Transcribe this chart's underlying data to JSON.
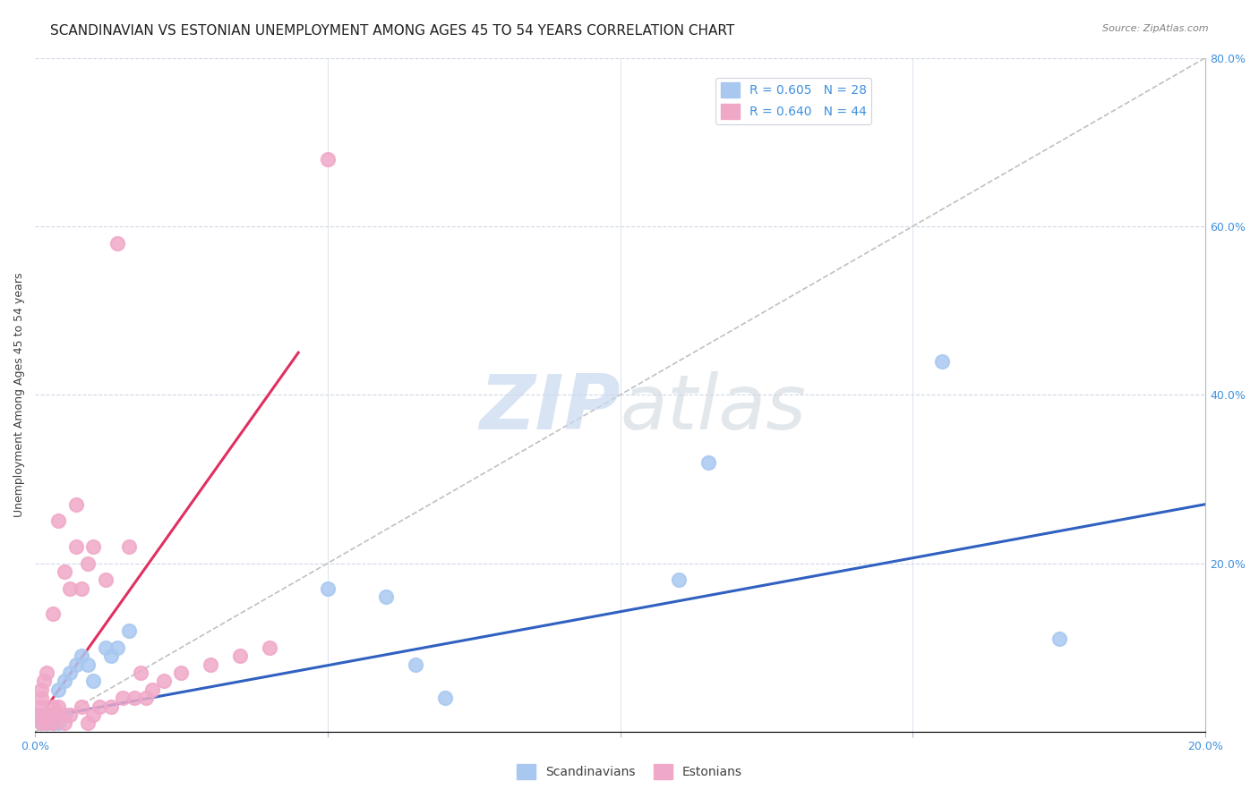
{
  "title": "SCANDINAVIAN VS ESTONIAN UNEMPLOYMENT AMONG AGES 45 TO 54 YEARS CORRELATION CHART",
  "source": "Source: ZipAtlas.com",
  "xlabel_ticks": [
    "0.0%",
    "20.0%"
  ],
  "ylabel_label": "Unemployment Among Ages 45 to 54 years",
  "right_yticks": [
    "80.0%",
    "60.0%",
    "40.0%",
    "20.0%"
  ],
  "legend_blue_text": "R = 0.605   N = 28",
  "legend_pink_text": "R = 0.640   N = 44",
  "legend_blue_label": "Scandinavians",
  "legend_pink_label": "Estonians",
  "blue_scatter_color": "#a8c8f0",
  "pink_scatter_color": "#f0a8c8",
  "blue_line_color": "#3060c0",
  "pink_line_color": "#e03060",
  "dashed_line_color": "#c0c0c0",
  "watermark_text": "ZIPatlas",
  "watermark_zip_color": "#c8d8f0",
  "watermark_atlas_color": "#d0d0d0",
  "title_fontsize": 11,
  "axis_label_fontsize": 9,
  "tick_fontsize": 9,
  "blue_scatter_x": [
    0.001,
    0.001,
    0.002,
    0.002,
    0.003,
    0.003,
    0.003,
    0.004,
    0.004,
    0.005,
    0.005,
    0.006,
    0.007,
    0.008,
    0.009,
    0.01,
    0.012,
    0.013,
    0.014,
    0.016,
    0.05,
    0.06,
    0.065,
    0.07,
    0.11,
    0.115,
    0.155,
    0.175
  ],
  "blue_scatter_y": [
    0.01,
    0.02,
    0.01,
    0.02,
    0.01,
    0.015,
    0.02,
    0.01,
    0.05,
    0.06,
    0.02,
    0.07,
    0.08,
    0.09,
    0.08,
    0.06,
    0.1,
    0.09,
    0.1,
    0.12,
    0.17,
    0.16,
    0.08,
    0.04,
    0.18,
    0.32,
    0.44,
    0.11
  ],
  "pink_scatter_x": [
    0.0005,
    0.001,
    0.001,
    0.001,
    0.001,
    0.0015,
    0.002,
    0.002,
    0.002,
    0.003,
    0.003,
    0.003,
    0.003,
    0.004,
    0.004,
    0.004,
    0.005,
    0.005,
    0.006,
    0.006,
    0.007,
    0.007,
    0.008,
    0.008,
    0.009,
    0.009,
    0.01,
    0.01,
    0.011,
    0.012,
    0.013,
    0.014,
    0.015,
    0.016,
    0.017,
    0.018,
    0.019,
    0.02,
    0.022,
    0.025,
    0.03,
    0.035,
    0.04,
    0.05
  ],
  "pink_scatter_y": [
    0.02,
    0.01,
    0.03,
    0.04,
    0.05,
    0.06,
    0.01,
    0.02,
    0.07,
    0.01,
    0.02,
    0.03,
    0.14,
    0.02,
    0.03,
    0.25,
    0.01,
    0.19,
    0.02,
    0.17,
    0.22,
    0.27,
    0.03,
    0.17,
    0.01,
    0.2,
    0.02,
    0.22,
    0.03,
    0.18,
    0.03,
    0.58,
    0.04,
    0.22,
    0.04,
    0.07,
    0.04,
    0.05,
    0.06,
    0.07,
    0.08,
    0.09,
    0.1,
    0.68
  ],
  "blue_line_x": [
    0.0,
    0.2
  ],
  "blue_line_y": [
    0.015,
    0.27
  ],
  "pink_line_x": [
    0.0,
    0.045
  ],
  "pink_line_y": [
    0.01,
    0.45
  ],
  "diag_line_x": [
    0.0,
    0.2
  ],
  "diag_line_y": [
    0.0,
    0.8
  ],
  "xmin": 0.0,
  "xmax": 0.2,
  "ymin": 0.0,
  "ymax": 0.8
}
